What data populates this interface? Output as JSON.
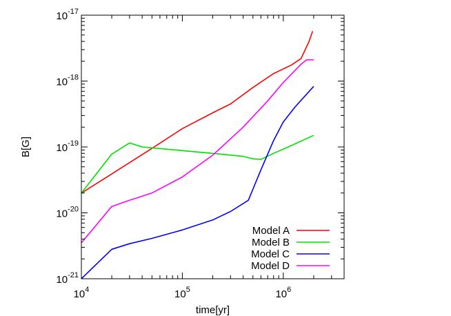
{
  "chart_data": {
    "type": "line",
    "title": "",
    "xlabel": "time[yr]",
    "ylabel": "B[G]",
    "x_scale": "log",
    "y_scale": "log",
    "xlim": [
      10000,
      4000000
    ],
    "ylim": [
      1e-21,
      1e-17
    ],
    "x_ticks": [
      {
        "value": 10000,
        "base": "10",
        "exp": "4"
      },
      {
        "value": 100000,
        "base": "10",
        "exp": "5"
      },
      {
        "value": 1000000,
        "base": "10",
        "exp": "6"
      }
    ],
    "y_ticks": [
      {
        "value": 1e-21,
        "base": "10",
        "exp": "-21"
      },
      {
        "value": 1e-20,
        "base": "10",
        "exp": "-20"
      },
      {
        "value": 1e-19,
        "base": "10",
        "exp": "-19"
      },
      {
        "value": 1e-18,
        "base": "10",
        "exp": "-18"
      },
      {
        "value": 1e-17,
        "base": "10",
        "exp": "-17"
      }
    ],
    "grid": false,
    "legend_position": "bottom-right",
    "series": [
      {
        "name": "Model A",
        "color": "#ff0000",
        "x": [
          10000,
          20000,
          50000,
          100000,
          200000,
          300000,
          500000,
          800000,
          1200000,
          1500000,
          1800000,
          1950000
        ],
        "y": [
          2e-20,
          3.9e-20,
          9.5e-20,
          1.9e-19,
          3.3e-19,
          4.5e-19,
          8e-19,
          1.3e-18,
          1.75e-18,
          2.2e-18,
          4e-18,
          5.7e-18
        ]
      },
      {
        "name": "Model B",
        "color": "#00e000",
        "x": [
          10000,
          20000,
          30000,
          40000,
          100000,
          200000,
          400000,
          500000,
          600000,
          800000,
          1200000,
          2000000
        ],
        "y": [
          2e-20,
          7.8e-20,
          1.15e-19,
          1e-19,
          8.8e-20,
          8e-20,
          7.2e-20,
          6.6e-20,
          6.5e-20,
          8e-20,
          1.05e-19,
          1.5e-19
        ]
      },
      {
        "name": "Model C",
        "color": "#0000ff",
        "x": [
          10000,
          20000,
          30000,
          50000,
          100000,
          200000,
          300000,
          450000,
          600000,
          800000,
          1000000,
          1300000,
          1600000,
          2000000
        ],
        "y": [
          1e-21,
          2.8e-21,
          3.4e-21,
          4.1e-21,
          5.5e-21,
          7.8e-21,
          1.05e-20,
          1.55e-20,
          4.5e-20,
          1.25e-19,
          2.4e-19,
          4e-19,
          5.7e-19,
          8.3e-19
        ]
      },
      {
        "name": "Model D",
        "color": "#ff00ff",
        "x": [
          10000,
          20000,
          30000,
          50000,
          100000,
          200000,
          400000,
          700000,
          1000000,
          1500000,
          1700000,
          2000000
        ],
        "y": [
          3.5e-21,
          1.25e-20,
          1.55e-20,
          2e-20,
          3.5e-20,
          7.5e-20,
          2e-19,
          5e-19,
          9.5e-19,
          1.8e-18,
          2.1e-18,
          2.1e-18
        ]
      }
    ]
  }
}
